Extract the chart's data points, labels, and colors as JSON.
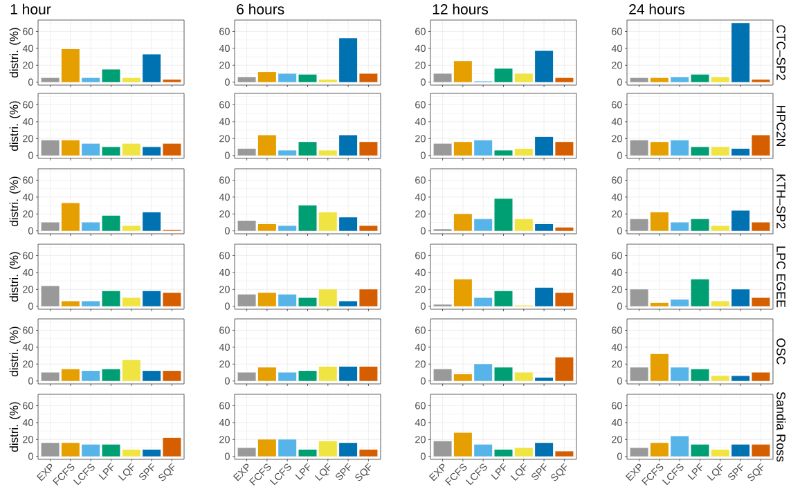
{
  "chart_data": [
    {
      "type": "bar",
      "title": "1 hour",
      "ylabel": "distri. (%)",
      "categories": [
        null,
        null,
        null,
        null,
        null,
        null,
        null
      ],
      "values": [
        5,
        39,
        5,
        15,
        5,
        33,
        3
      ],
      "colors": [
        "#999999",
        "#e69f00",
        "#56b4e9",
        "#009e73",
        "#f0e442",
        "#0072b2",
        "#d55e00"
      ],
      "ylim": [
        -3.5,
        73.5
      ],
      "yticks": [
        0,
        20,
        40,
        60
      ],
      "grid": true
    },
    {
      "type": "bar",
      "title": "6 hours",
      "categories": [
        null,
        null,
        null,
        null,
        null,
        null,
        null
      ],
      "values": [
        6,
        12,
        10,
        9,
        3,
        52,
        10
      ],
      "colors": [
        "#999999",
        "#e69f00",
        "#56b4e9",
        "#009e73",
        "#f0e442",
        "#0072b2",
        "#d55e00"
      ],
      "ylim": [
        -3.5,
        73.5
      ],
      "yticks": [
        0,
        20,
        40,
        60
      ],
      "grid": true
    },
    {
      "type": "bar",
      "title": "12 hours",
      "categories": [
        null,
        null,
        null,
        null,
        null,
        null,
        null
      ],
      "values": [
        10,
        25,
        1,
        16,
        10,
        37,
        5
      ],
      "colors": [
        "#999999",
        "#e69f00",
        "#56b4e9",
        "#009e73",
        "#f0e442",
        "#0072b2",
        "#d55e00"
      ],
      "ylim": [
        -3.5,
        73.5
      ],
      "yticks": [
        0,
        20,
        40,
        60
      ],
      "grid": true
    },
    {
      "type": "bar",
      "title": "24 hours",
      "y2label": "CTC–SP2",
      "categories": [
        null,
        null,
        null,
        null,
        null,
        null,
        null
      ],
      "values": [
        5,
        5,
        6,
        9,
        6,
        70,
        3
      ],
      "colors": [
        "#999999",
        "#e69f00",
        "#56b4e9",
        "#009e73",
        "#f0e442",
        "#0072b2",
        "#d55e00"
      ],
      "ylim": [
        -3.5,
        73.5
      ],
      "yticks": [
        0,
        20,
        40,
        60
      ],
      "grid": true
    },
    {
      "type": "bar",
      "ylabel": "distri. (%)",
      "categories": [
        null,
        null,
        null,
        null,
        null,
        null,
        null
      ],
      "values": [
        18,
        18,
        14,
        10,
        14,
        10,
        14
      ],
      "colors": [
        "#999999",
        "#e69f00",
        "#56b4e9",
        "#009e73",
        "#f0e442",
        "#0072b2",
        "#d55e00"
      ],
      "ylim": [
        -3.5,
        73.5
      ],
      "yticks": [
        0,
        20,
        40,
        60
      ],
      "grid": true
    },
    {
      "type": "bar",
      "categories": [
        null,
        null,
        null,
        null,
        null,
        null,
        null
      ],
      "values": [
        8,
        24,
        6,
        16,
        6,
        24,
        16
      ],
      "colors": [
        "#999999",
        "#e69f00",
        "#56b4e9",
        "#009e73",
        "#f0e442",
        "#0072b2",
        "#d55e00"
      ],
      "ylim": [
        -3.5,
        73.5
      ],
      "yticks": [
        0,
        20,
        40,
        60
      ],
      "grid": true
    },
    {
      "type": "bar",
      "categories": [
        null,
        null,
        null,
        null,
        null,
        null,
        null
      ],
      "values": [
        14,
        16,
        18,
        6,
        8,
        22,
        16
      ],
      "colors": [
        "#999999",
        "#e69f00",
        "#56b4e9",
        "#009e73",
        "#f0e442",
        "#0072b2",
        "#d55e00"
      ],
      "ylim": [
        -3.5,
        73.5
      ],
      "yticks": [
        0,
        20,
        40,
        60
      ],
      "grid": true
    },
    {
      "type": "bar",
      "y2label": "HPC2N",
      "categories": [
        null,
        null,
        null,
        null,
        null,
        null,
        null
      ],
      "values": [
        18,
        16,
        18,
        10,
        10,
        8,
        24
      ],
      "colors": [
        "#999999",
        "#e69f00",
        "#56b4e9",
        "#009e73",
        "#f0e442",
        "#0072b2",
        "#d55e00"
      ],
      "ylim": [
        -3.5,
        73.5
      ],
      "yticks": [
        0,
        20,
        40,
        60
      ],
      "grid": true
    },
    {
      "type": "bar",
      "ylabel": "distri. (%)",
      "categories": [
        null,
        null,
        null,
        null,
        null,
        null,
        null
      ],
      "values": [
        10,
        33,
        10,
        18,
        6,
        22,
        1
      ],
      "colors": [
        "#999999",
        "#e69f00",
        "#56b4e9",
        "#009e73",
        "#f0e442",
        "#0072b2",
        "#d55e00"
      ],
      "ylim": [
        -3.5,
        73.5
      ],
      "yticks": [
        0,
        20,
        40,
        60
      ],
      "grid": true
    },
    {
      "type": "bar",
      "categories": [
        null,
        null,
        null,
        null,
        null,
        null,
        null
      ],
      "values": [
        12,
        8,
        6,
        30,
        22,
        16,
        6
      ],
      "colors": [
        "#999999",
        "#e69f00",
        "#56b4e9",
        "#009e73",
        "#f0e442",
        "#0072b2",
        "#d55e00"
      ],
      "ylim": [
        -3.5,
        73.5
      ],
      "yticks": [
        0,
        20,
        40,
        60
      ],
      "grid": true
    },
    {
      "type": "bar",
      "categories": [
        null,
        null,
        null,
        null,
        null,
        null,
        null
      ],
      "values": [
        2,
        20,
        14,
        38,
        14,
        8,
        4
      ],
      "colors": [
        "#999999",
        "#e69f00",
        "#56b4e9",
        "#009e73",
        "#f0e442",
        "#0072b2",
        "#d55e00"
      ],
      "ylim": [
        -3.5,
        73.5
      ],
      "yticks": [
        0,
        20,
        40,
        60
      ],
      "grid": true
    },
    {
      "type": "bar",
      "y2label": "KTH–SP2",
      "categories": [
        null,
        null,
        null,
        null,
        null,
        null,
        null
      ],
      "values": [
        14,
        22,
        10,
        14,
        6,
        24,
        10
      ],
      "colors": [
        "#999999",
        "#e69f00",
        "#56b4e9",
        "#009e73",
        "#f0e442",
        "#0072b2",
        "#d55e00"
      ],
      "ylim": [
        -3.5,
        73.5
      ],
      "yticks": [
        0,
        20,
        40,
        60
      ],
      "grid": true
    },
    {
      "type": "bar",
      "ylabel": "distri. (%)",
      "categories": [
        null,
        null,
        null,
        null,
        null,
        null,
        null
      ],
      "values": [
        24,
        6,
        6,
        18,
        10,
        18,
        16
      ],
      "colors": [
        "#999999",
        "#e69f00",
        "#56b4e9",
        "#009e73",
        "#f0e442",
        "#0072b2",
        "#d55e00"
      ],
      "ylim": [
        -3.5,
        73.5
      ],
      "yticks": [
        0,
        20,
        40,
        60
      ],
      "grid": true
    },
    {
      "type": "bar",
      "categories": [
        null,
        null,
        null,
        null,
        null,
        null,
        null
      ],
      "values": [
        14,
        16,
        14,
        10,
        20,
        6,
        20
      ],
      "colors": [
        "#999999",
        "#e69f00",
        "#56b4e9",
        "#009e73",
        "#f0e442",
        "#0072b2",
        "#d55e00"
      ],
      "ylim": [
        -3.5,
        73.5
      ],
      "yticks": [
        0,
        20,
        40,
        60
      ],
      "grid": true
    },
    {
      "type": "bar",
      "categories": [
        null,
        null,
        null,
        null,
        null,
        null,
        null
      ],
      "values": [
        2,
        32,
        10,
        18,
        1,
        22,
        16
      ],
      "colors": [
        "#999999",
        "#e69f00",
        "#56b4e9",
        "#009e73",
        "#f0e442",
        "#0072b2",
        "#d55e00"
      ],
      "ylim": [
        -3.5,
        73.5
      ],
      "yticks": [
        0,
        20,
        40,
        60
      ],
      "grid": true
    },
    {
      "type": "bar",
      "y2label": "LPC EGEE",
      "categories": [
        null,
        null,
        null,
        null,
        null,
        null,
        null
      ],
      "values": [
        20,
        4,
        8,
        32,
        6,
        20,
        10
      ],
      "colors": [
        "#999999",
        "#e69f00",
        "#56b4e9",
        "#009e73",
        "#f0e442",
        "#0072b2",
        "#d55e00"
      ],
      "ylim": [
        -3.5,
        73.5
      ],
      "yticks": [
        0,
        20,
        40,
        60
      ],
      "grid": true
    },
    {
      "type": "bar",
      "ylabel": "distri. (%)",
      "categories": [
        null,
        null,
        null,
        null,
        null,
        null,
        null
      ],
      "values": [
        10,
        14,
        12,
        14,
        25,
        12,
        12
      ],
      "colors": [
        "#999999",
        "#e69f00",
        "#56b4e9",
        "#009e73",
        "#f0e442",
        "#0072b2",
        "#d55e00"
      ],
      "ylim": [
        -3.5,
        73.5
      ],
      "yticks": [
        0,
        20,
        40,
        60
      ],
      "grid": true
    },
    {
      "type": "bar",
      "categories": [
        null,
        null,
        null,
        null,
        null,
        null,
        null
      ],
      "values": [
        10,
        16,
        10,
        12,
        17,
        17,
        17
      ],
      "colors": [
        "#999999",
        "#e69f00",
        "#56b4e9",
        "#009e73",
        "#f0e442",
        "#0072b2",
        "#d55e00"
      ],
      "ylim": [
        -3.5,
        73.5
      ],
      "yticks": [
        0,
        20,
        40,
        60
      ],
      "grid": true
    },
    {
      "type": "bar",
      "categories": [
        null,
        null,
        null,
        null,
        null,
        null,
        null
      ],
      "values": [
        14,
        8,
        20,
        16,
        10,
        4,
        28
      ],
      "colors": [
        "#999999",
        "#e69f00",
        "#56b4e9",
        "#009e73",
        "#f0e442",
        "#0072b2",
        "#d55e00"
      ],
      "ylim": [
        -3.5,
        73.5
      ],
      "yticks": [
        0,
        20,
        40,
        60
      ],
      "grid": true
    },
    {
      "type": "bar",
      "y2label": "OSC",
      "categories": [
        null,
        null,
        null,
        null,
        null,
        null,
        null
      ],
      "values": [
        16,
        32,
        16,
        14,
        6,
        6,
        10
      ],
      "colors": [
        "#999999",
        "#e69f00",
        "#56b4e9",
        "#009e73",
        "#f0e442",
        "#0072b2",
        "#d55e00"
      ],
      "ylim": [
        -3.5,
        73.5
      ],
      "yticks": [
        0,
        20,
        40,
        60
      ],
      "grid": true
    },
    {
      "type": "bar",
      "ylabel": "distri. (%)",
      "categories": [
        "EXP",
        "FCFS",
        "LCFS",
        "LPF",
        "LQF",
        "SPF",
        "SQF"
      ],
      "values": [
        16,
        16,
        14,
        14,
        8,
        8,
        22
      ],
      "colors": [
        "#999999",
        "#e69f00",
        "#56b4e9",
        "#009e73",
        "#f0e442",
        "#0072b2",
        "#d55e00"
      ],
      "ylim": [
        -3.5,
        73.5
      ],
      "yticks": [
        0,
        20,
        40,
        60
      ],
      "grid": true
    },
    {
      "type": "bar",
      "categories": [
        "EXP",
        "FCFS",
        "LCFS",
        "LPF",
        "LQF",
        "SPF",
        "SQF"
      ],
      "values": [
        10,
        20,
        20,
        8,
        18,
        16,
        8
      ],
      "colors": [
        "#999999",
        "#e69f00",
        "#56b4e9",
        "#009e73",
        "#f0e442",
        "#0072b2",
        "#d55e00"
      ],
      "ylim": [
        -3.5,
        73.5
      ],
      "yticks": [
        0,
        20,
        40,
        60
      ],
      "grid": true
    },
    {
      "type": "bar",
      "categories": [
        "EXP",
        "FCFS",
        "LCFS",
        "LPF",
        "LQF",
        "SPF",
        "SQF"
      ],
      "values": [
        18,
        28,
        14,
        8,
        10,
        16,
        6
      ],
      "colors": [
        "#999999",
        "#e69f00",
        "#56b4e9",
        "#009e73",
        "#f0e442",
        "#0072b2",
        "#d55e00"
      ],
      "ylim": [
        -3.5,
        73.5
      ],
      "yticks": [
        0,
        20,
        40,
        60
      ],
      "grid": true
    },
    {
      "type": "bar",
      "y2label": "Sandia Ross",
      "categories": [
        "EXP",
        "FCFS",
        "LCFS",
        "LPF",
        "LQF",
        "SPF",
        "SQF"
      ],
      "values": [
        10,
        16,
        24,
        14,
        8,
        14,
        14
      ],
      "colors": [
        "#999999",
        "#e69f00",
        "#56b4e9",
        "#009e73",
        "#f0e442",
        "#0072b2",
        "#d55e00"
      ],
      "ylim": [
        -3.5,
        73.5
      ],
      "yticks": [
        0,
        20,
        40,
        60
      ],
      "grid": true
    }
  ]
}
